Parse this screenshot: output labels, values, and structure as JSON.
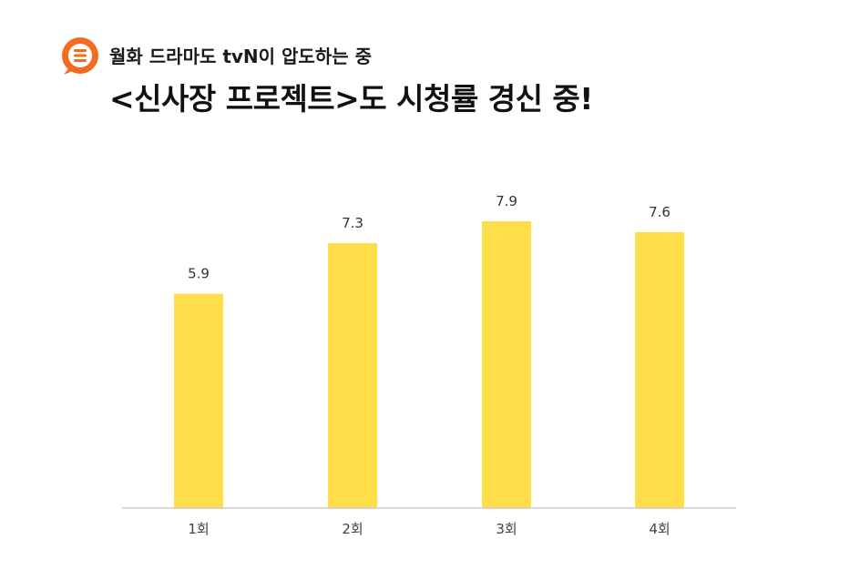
{
  "header": {
    "subtitle": "월화 드라마도 tvN이 압도하는 중",
    "title": "<신사장 프로젝트>도 시청률 경신 중!",
    "logo_icon": "speech-bubble-menu-icon"
  },
  "colors": {
    "accent": "#F26B21",
    "bar": "#FFDE4A",
    "axis": "#CCCCCC"
  },
  "chart_data": {
    "type": "bar",
    "categories": [
      "1회",
      "2회",
      "3회",
      "4회"
    ],
    "values": [
      5.9,
      7.3,
      7.9,
      7.6
    ],
    "title": "",
    "xlabel": "",
    "ylabel": "",
    "ylim": [
      0,
      7.9
    ],
    "grid": false
  }
}
